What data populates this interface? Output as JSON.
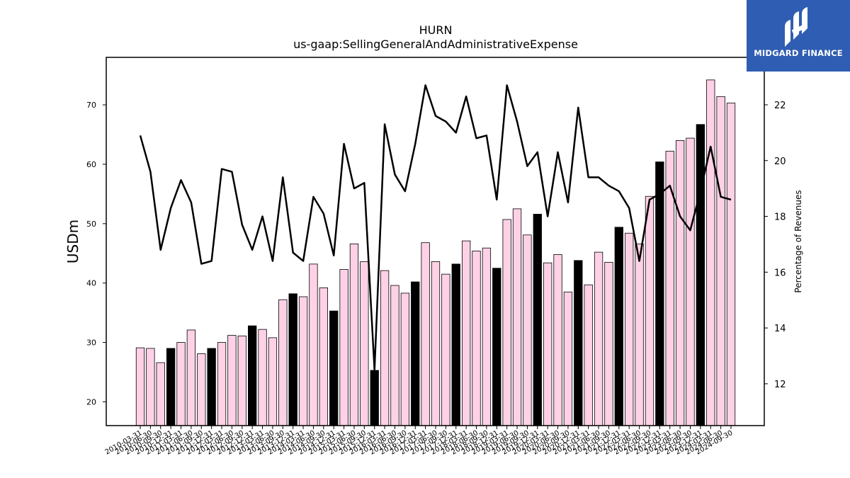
{
  "chart_data": {
    "type": "bar+line",
    "title": "HURN",
    "subtitle": "us-gaap:SellingGeneralAndAdministrativeExpense",
    "ylabel": "USDm",
    "y2label": "Percentage of Revenues",
    "ylim": [
      16,
      78
    ],
    "y2lim": [
      10.5,
      23.7
    ],
    "yticks": [
      20,
      30,
      40,
      50,
      60,
      70
    ],
    "y2ticks": [
      12,
      14,
      16,
      18,
      20,
      22
    ],
    "grid": false,
    "colors": {
      "bar_default": "#ffd1e6",
      "bar_highlight": "#000000",
      "line": "#000000"
    },
    "categories": [
      "2010-03-31",
      "2010-06-30",
      "2010-09-30",
      "2010-12-31",
      "2011-03-31",
      "2011-06-30",
      "2011-09-30",
      "2011-12-31",
      "2012-03-31",
      "2012-06-30",
      "2012-09-30",
      "2012-12-31",
      "2013-03-31",
      "2013-06-30",
      "2013-09-30",
      "2013-12-31",
      "2014-03-31",
      "2014-06-30",
      "2014-09-30",
      "2014-12-31",
      "2015-03-31",
      "2015-06-30",
      "2015-09-30",
      "2015-12-31",
      "2016-03-31",
      "2016-06-30",
      "2016-09-30",
      "2016-12-31",
      "2017-03-31",
      "2017-06-30",
      "2017-09-30",
      "2017-12-31",
      "2018-03-31",
      "2018-06-30",
      "2018-09-30",
      "2018-12-31",
      "2019-03-31",
      "2019-06-30",
      "2019-09-30",
      "2019-12-31",
      "2020-03-31",
      "2020-06-30",
      "2020-09-30",
      "2020-12-31",
      "2021-03-31",
      "2021-06-30",
      "2021-09-30",
      "2021-12-31",
      "2022-03-31",
      "2022-06-30",
      "2022-09-30",
      "2022-12-31",
      "2023-03-31",
      "2023-06-30",
      "2023-09-30",
      "2023-12-31",
      "2024-03-31",
      "2024-06-30",
      "2024-09-30"
    ],
    "series": [
      {
        "kind": "bar",
        "axis": "left",
        "values": [
          29.1,
          29.0,
          26.6,
          29.0,
          30.0,
          32.1,
          28.1,
          29.0,
          30.0,
          31.2,
          31.1,
          32.8,
          32.2,
          30.8,
          37.2,
          38.2,
          37.7,
          43.2,
          39.2,
          35.3,
          42.3,
          46.6,
          43.6,
          25.3,
          42.1,
          39.6,
          38.3,
          40.2,
          46.8,
          43.6,
          41.5,
          43.2,
          47.1,
          45.4,
          45.9,
          42.5,
          50.7,
          52.5,
          48.1,
          51.6,
          43.4,
          44.8,
          38.5,
          43.8,
          39.7,
          45.2,
          43.5,
          49.4,
          48.4,
          46.6,
          54.6,
          60.4,
          62.2,
          64.0,
          64.4,
          66.7,
          74.2,
          71.4,
          70.3
        ],
        "highlight": [
          false,
          false,
          false,
          true,
          false,
          false,
          false,
          true,
          false,
          false,
          false,
          true,
          false,
          false,
          false,
          true,
          false,
          false,
          false,
          true,
          false,
          false,
          false,
          true,
          false,
          false,
          false,
          true,
          false,
          false,
          false,
          true,
          false,
          false,
          false,
          true,
          false,
          false,
          false,
          true,
          false,
          false,
          false,
          true,
          false,
          false,
          false,
          true,
          false,
          false,
          false,
          true,
          false,
          false,
          false,
          true,
          false,
          false,
          false
        ]
      },
      {
        "kind": "line",
        "axis": "right",
        "values": [
          20.9,
          19.6,
          16.8,
          18.3,
          19.3,
          18.5,
          16.3,
          16.4,
          19.7,
          19.6,
          17.7,
          16.8,
          18.0,
          16.4,
          19.4,
          16.7,
          16.4,
          18.7,
          18.1,
          16.6,
          20.6,
          19.0,
          19.2,
          12.5,
          21.3,
          19.5,
          18.9,
          20.6,
          22.7,
          21.6,
          21.4,
          21.0,
          22.3,
          20.8,
          20.9,
          18.6,
          22.7,
          21.4,
          19.8,
          20.3,
          18.0,
          20.3,
          18.5,
          21.9,
          19.4,
          19.4,
          19.1,
          18.9,
          18.3,
          16.4,
          18.6,
          18.8,
          19.1,
          18.0,
          17.5,
          18.9,
          20.5,
          18.7,
          18.6
        ]
      }
    ]
  },
  "logo": {
    "text": "MIDGARD FINANCE"
  }
}
